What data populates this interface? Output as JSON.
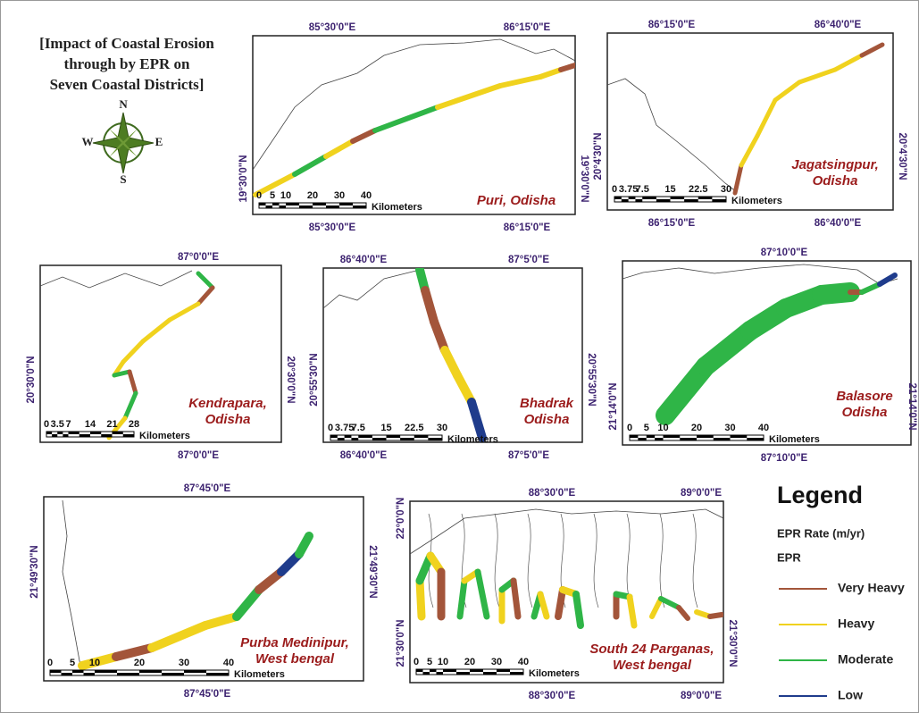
{
  "title_lines": [
    "[Impact of Coastal Erosion",
    "through by EPR on",
    "Seven Coastal Districts]"
  ],
  "compass": {
    "n": "N",
    "e": "E",
    "s": "S",
    "w": "W"
  },
  "maps": [
    {
      "label_lines": [
        "Puri, Odisha"
      ],
      "top_ticks": [
        "85°30'0\"E",
        "86°15'0\"E"
      ],
      "bottom_ticks": [
        "85°30'0\"E",
        "86°15'0\"E"
      ],
      "left_ticks": [
        "19°30'0\"N"
      ],
      "right_ticks": [
        "19°30'0\"N"
      ],
      "scale": [
        "0",
        "5",
        "10",
        "20",
        "30",
        "40"
      ],
      "scale_unit": "Kilometers"
    },
    {
      "label_lines": [
        "Jagatsingpur,",
        "Odisha"
      ],
      "top_ticks": [
        "86°15'0\"E",
        "86°40'0\"E"
      ],
      "bottom_ticks": [
        "86°15'0\"E",
        "86°40'0\"E"
      ],
      "left_ticks": [
        "20°4'30\"N"
      ],
      "right_ticks": [
        "20°4'30\"N"
      ],
      "scale": [
        "0",
        "3.75",
        "7.5",
        "15",
        "22.5",
        "30"
      ],
      "scale_unit": "Kilometers"
    },
    {
      "label_lines": [
        "Kendrapara,",
        "Odisha"
      ],
      "top_ticks": [
        "87°0'0\"E"
      ],
      "bottom_ticks": [
        "87°0'0\"E"
      ],
      "left_ticks": [
        "20°30'0\"N"
      ],
      "right_ticks": [
        "20°30'0\"N"
      ],
      "scale": [
        "0",
        "3.5",
        "7",
        "14",
        "21",
        "28"
      ],
      "scale_unit": "Kilometers"
    },
    {
      "label_lines": [
        "Bhadrak",
        "Odisha"
      ],
      "top_ticks": [
        "86°40'0\"E",
        "87°5'0\"E"
      ],
      "bottom_ticks": [
        "86°40'0\"E",
        "87°5'0\"E"
      ],
      "left_ticks": [
        "20°55'30\"N"
      ],
      "right_ticks": [
        "20°55'30\"N"
      ],
      "scale": [
        "0",
        "3.75",
        "7.5",
        "15",
        "22.5",
        "30"
      ],
      "scale_unit": "Kilometers"
    },
    {
      "label_lines": [
        "Balasore",
        "Odisha"
      ],
      "top_ticks": [
        "87°10'0\"E"
      ],
      "bottom_ticks": [
        "87°10'0\"E"
      ],
      "left_ticks": [
        "21°14'0\"N"
      ],
      "right_ticks": [
        "21°14'0\"N"
      ],
      "scale": [
        "0",
        "5",
        "10",
        "20",
        "30",
        "40"
      ],
      "scale_unit": "Kilometers"
    },
    {
      "label_lines": [
        "Purba Medinipur,",
        "West bengal"
      ],
      "top_ticks": [
        "87°45'0\"E"
      ],
      "bottom_ticks": [
        "87°45'0\"E"
      ],
      "left_ticks": [
        "21°49'30\"N"
      ],
      "right_ticks": [
        "21°49'30\"N"
      ],
      "scale": [
        "0",
        "5",
        "10",
        "20",
        "30",
        "40"
      ],
      "scale_unit": "Kilometers"
    },
    {
      "label_lines": [
        "South 24 Parganas,",
        "West bengal"
      ],
      "top_ticks": [
        "88°30'0\"E",
        "89°0'0\"E"
      ],
      "bottom_ticks": [
        "88°30'0\"E",
        "89°0'0\"E"
      ],
      "left_ticks": [
        "22°0'0\"N",
        "21°30'0\"N"
      ],
      "right_ticks": [
        "21°30'0\"N"
      ],
      "scale": [
        "0",
        "5",
        "10",
        "20",
        "30",
        "40"
      ],
      "scale_unit": "Kilometers"
    }
  ],
  "legend": {
    "title": "Legend",
    "subtitle": "EPR Rate (m/yr)",
    "field": "EPR",
    "items": [
      {
        "label": "Very Heavy",
        "color": "#a3553a"
      },
      {
        "label": "Heavy",
        "color": "#f0d21e"
      },
      {
        "label": "Moderate",
        "color": "#2fb547"
      },
      {
        "label": "Low",
        "color": "#1f3c8c"
      }
    ]
  }
}
